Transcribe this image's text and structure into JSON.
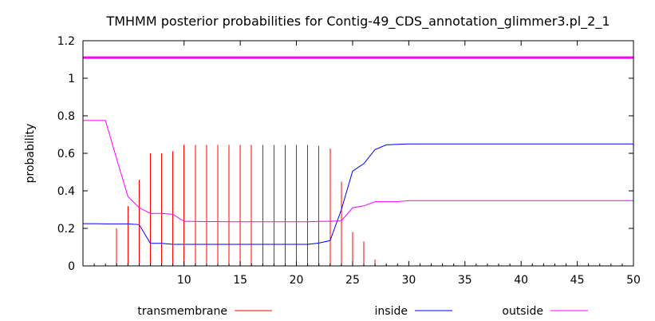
{
  "chart_data": {
    "type": "line",
    "title": "TMHMM posterior probabilities for Contig-49_CDS_annotation_glimmer3.pl_2_1",
    "ylabel": "probability",
    "xlabel": "",
    "xlim": [
      1,
      50
    ],
    "ylim": [
      0,
      1.2
    ],
    "grid": false,
    "legend_position": "bottom",
    "x_ticks": [
      10,
      15,
      20,
      25,
      30,
      35,
      40,
      45,
      50
    ],
    "y_ticks": [
      0,
      0.2,
      0.4,
      0.6,
      0.8,
      1,
      1.2
    ],
    "x_tick_labels": [
      "10",
      "15",
      "20",
      "25",
      "30",
      "35",
      "40",
      "45",
      "50"
    ],
    "y_tick_labels": [
      "0",
      "0.2",
      "0.4",
      "0.6",
      "0.8",
      "1",
      "1.2"
    ],
    "reference_line": {
      "y": 1.11,
      "color": "#ff00ff"
    },
    "x": [
      1,
      2,
      3,
      4,
      5,
      6,
      7,
      8,
      9,
      10,
      11,
      12,
      13,
      14,
      15,
      16,
      17,
      18,
      19,
      20,
      21,
      22,
      23,
      24,
      25,
      26,
      27,
      28,
      29,
      30,
      31,
      32,
      33,
      34,
      35,
      36,
      37,
      38,
      39,
      40,
      41,
      42,
      43,
      44,
      45,
      46,
      47,
      48,
      49,
      50
    ],
    "series": [
      {
        "name": "transmembrane",
        "style": "impulses",
        "color": "#ff0000",
        "values": [
          0,
          0,
          0,
          0.2,
          0.32,
          0.46,
          0.6,
          0.6,
          0.61,
          0.645,
          0.645,
          0.645,
          0.645,
          0.645,
          0.645,
          0.645,
          0.645,
          0.645,
          0.645,
          0.645,
          0.645,
          0.64,
          0.625,
          0.45,
          0.18,
          0.13,
          0.035,
          0.008,
          0.003,
          0,
          0,
          0,
          0,
          0,
          0,
          0,
          0,
          0,
          0,
          0,
          0,
          0,
          0,
          0,
          0,
          0,
          0,
          0,
          0,
          0
        ]
      },
      {
        "name": "inside",
        "style": "line",
        "color": "#0000ff",
        "values": [
          0.225,
          0.225,
          0.224,
          0.224,
          0.224,
          0.22,
          0.12,
          0.12,
          0.115,
          0.115,
          0.115,
          0.115,
          0.115,
          0.115,
          0.115,
          0.115,
          0.115,
          0.115,
          0.115,
          0.115,
          0.115,
          0.122,
          0.135,
          0.3,
          0.505,
          0.545,
          0.62,
          0.645,
          0.648,
          0.65,
          0.65,
          0.65,
          0.65,
          0.65,
          0.65,
          0.65,
          0.65,
          0.65,
          0.65,
          0.65,
          0.65,
          0.65,
          0.65,
          0.65,
          0.65,
          0.65,
          0.65,
          0.65,
          0.65,
          0.65
        ]
      },
      {
        "name": "outside",
        "style": "line",
        "color": "#ff00ff",
        "values": [
          0.775,
          0.775,
          0.775,
          0.57,
          0.37,
          0.31,
          0.28,
          0.28,
          0.275,
          0.237,
          0.237,
          0.236,
          0.236,
          0.235,
          0.235,
          0.235,
          0.235,
          0.235,
          0.235,
          0.235,
          0.235,
          0.237,
          0.238,
          0.24,
          0.31,
          0.32,
          0.342,
          0.342,
          0.342,
          0.348,
          0.348,
          0.348,
          0.348,
          0.348,
          0.348,
          0.348,
          0.348,
          0.348,
          0.348,
          0.348,
          0.348,
          0.348,
          0.348,
          0.348,
          0.348,
          0.348,
          0.348,
          0.348,
          0.348,
          0.348
        ]
      }
    ]
  }
}
